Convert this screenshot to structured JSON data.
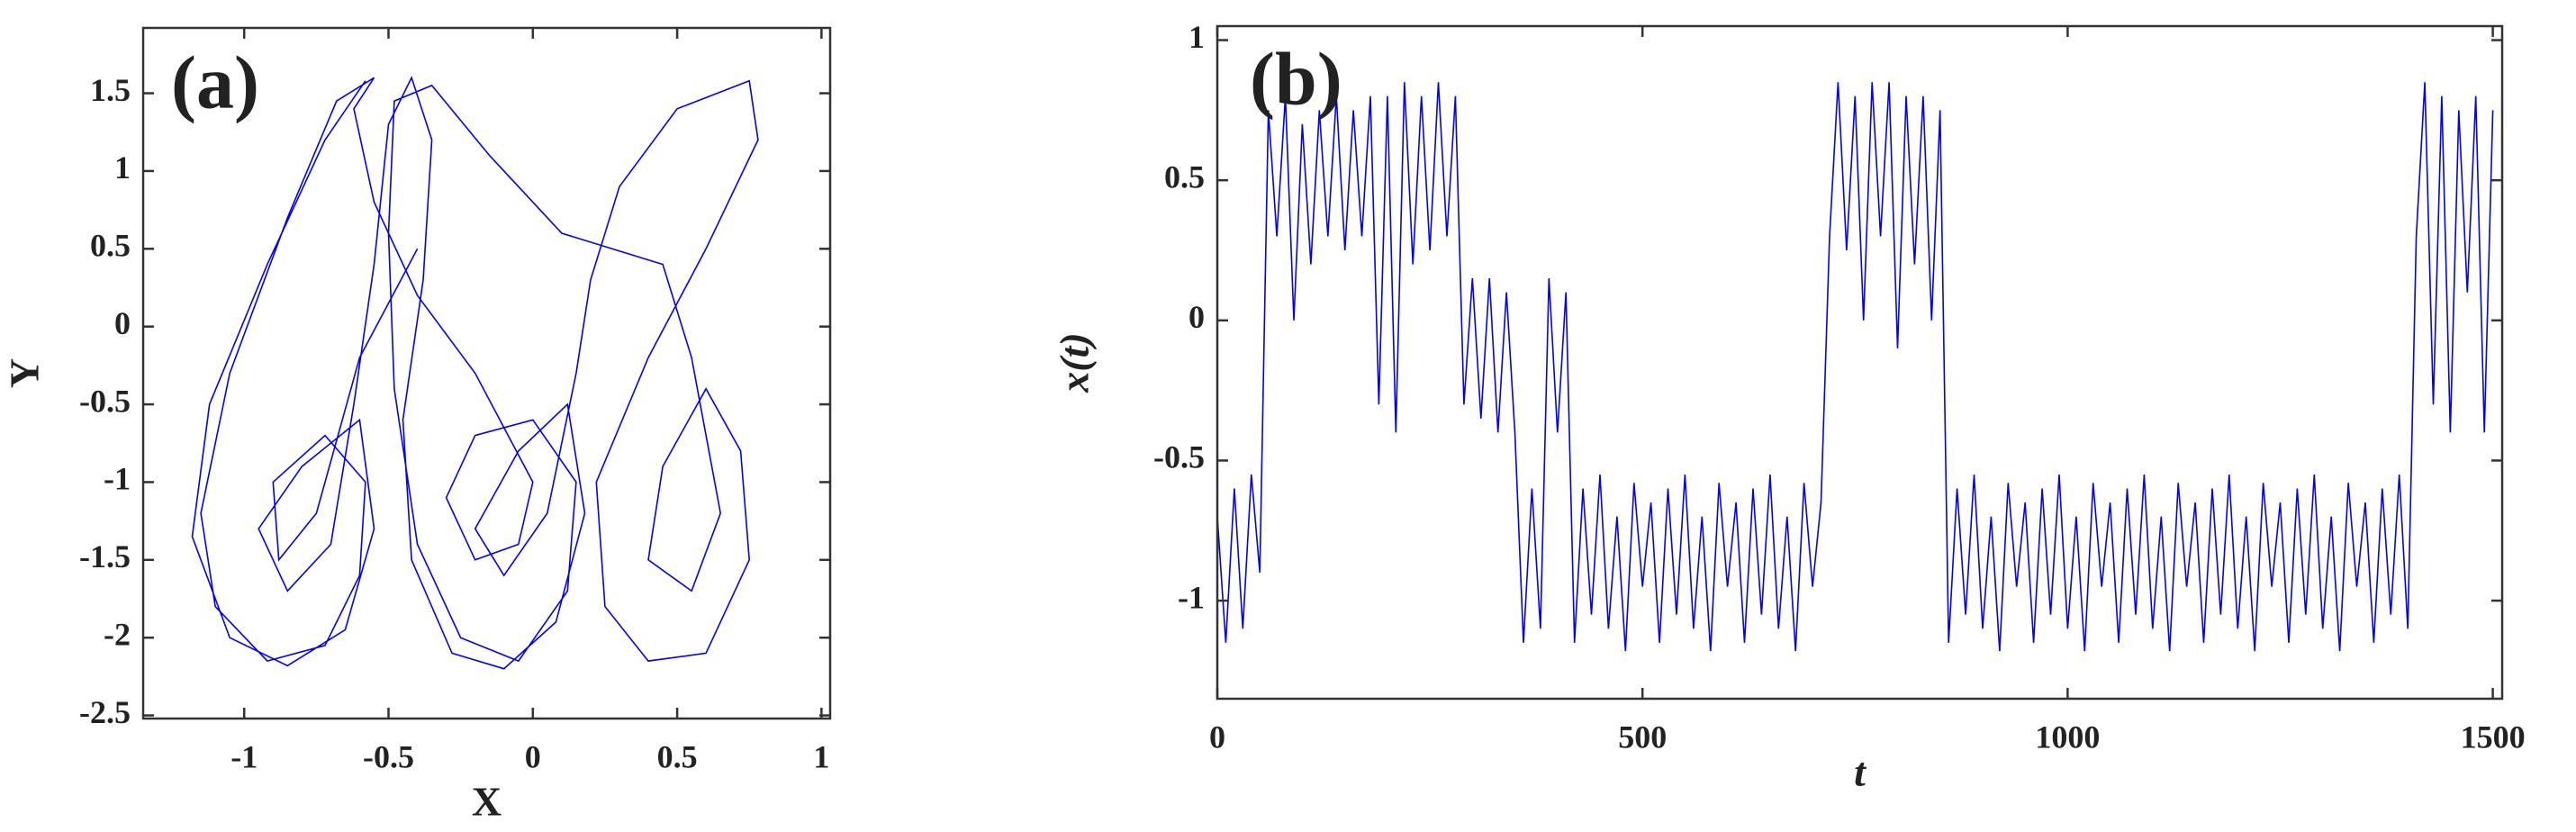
{
  "chart_data": [
    {
      "type": "line",
      "panel_label": "(a)",
      "xlabel": "X",
      "ylabel": "Y",
      "color": "#0000ff",
      "xlim": [
        -1.35,
        1.03
      ],
      "ylim": [
        -2.52,
        1.92
      ],
      "xticks": [
        -1,
        -0.5,
        0,
        0.5,
        1
      ],
      "yticks": [
        -2.5,
        -2,
        -1.5,
        -1,
        -0.5,
        0,
        0.5,
        1,
        1.5
      ],
      "x": [
        -0.58,
        -0.72,
        -0.92,
        -1.12,
        -1.18,
        -1.05,
        -0.85,
        -0.65,
        -0.55,
        -0.6,
        -0.8,
        -0.95,
        -0.85,
        -0.7,
        -0.62,
        -0.55,
        -0.5,
        -0.42,
        -0.35,
        -0.38,
        -0.45,
        -0.42,
        -0.28,
        -0.1,
        0.08,
        0.18,
        0.12,
        -0.05,
        -0.2,
        -0.1,
        0.05,
        0.15,
        0.2,
        0.3,
        0.5,
        0.75,
        0.78,
        0.6,
        0.4,
        0.22,
        0.25,
        0.4,
        0.6,
        0.75,
        0.72,
        0.6,
        0.45,
        0.4,
        0.55,
        0.65,
        0.55,
        0.45,
        0.1,
        -0.15,
        -0.35,
        -0.48,
        -0.5,
        -0.48,
        -0.4,
        -0.25,
        -0.05,
        0.12,
        0.15,
        0,
        -0.2,
        -0.3,
        -0.2,
        -0.05,
        0,
        -0.2,
        -0.4,
        -0.55,
        -0.62,
        -0.55,
        -0.68,
        -0.85,
        -1.05,
        -1.15,
        -1.1,
        -0.92,
        -0.72,
        -0.6,
        -0.58,
        -0.72,
        -0.9,
        -0.88,
        -0.75,
        -0.6,
        -0.4
      ],
      "values": [
        1.58,
        1.2,
        0.4,
        -0.5,
        -1.35,
        -2,
        -2.18,
        -1.95,
        -1.3,
        -0.6,
        -0.9,
        -1.3,
        -1.7,
        -1.4,
        -0.5,
        0.4,
        1.3,
        1.6,
        1.2,
        0.3,
        -0.6,
        -1.5,
        -2.1,
        -2.2,
        -1.9,
        -1.2,
        -0.5,
        -0.8,
        -1.3,
        -1.6,
        -1.2,
        -0.3,
        0.3,
        0.9,
        1.4,
        1.58,
        1.2,
        0.5,
        -0.2,
        -1,
        -1.8,
        -2.15,
        -2.1,
        -1.5,
        -0.8,
        -0.4,
        -0.9,
        -1.5,
        -1.7,
        -1.2,
        -0.2,
        0.4,
        0.6,
        1.1,
        1.55,
        1.45,
        0.6,
        -0.4,
        -1.4,
        -2,
        -2.15,
        -1.7,
        -1,
        -0.6,
        -0.7,
        -1.1,
        -1.5,
        -1.4,
        -1,
        -0.3,
        0.2,
        0.8,
        1.4,
        1.6,
        1.45,
        0.7,
        -0.3,
        -1.2,
        -1.8,
        -2.15,
        -2.05,
        -1.6,
        -1,
        -0.7,
        -1,
        -1.5,
        -1.2,
        -0.2,
        0.5
      ]
    },
    {
      "type": "line",
      "panel_label": "(b)",
      "xlabel": "t",
      "ylabel": "x(t)",
      "color": "#0000ff",
      "xlim": [
        0,
        1511
      ],
      "ylim": [
        -1.35,
        1.05
      ],
      "xticks": [
        0,
        500,
        1000,
        1500
      ],
      "yticks": [
        -1,
        -0.5,
        0,
        0.5,
        1
      ],
      "x": [
        0,
        10,
        20,
        30,
        40,
        50,
        60,
        70,
        80,
        90,
        100,
        110,
        120,
        130,
        140,
        150,
        160,
        170,
        180,
        190,
        200,
        210,
        220,
        230,
        240,
        250,
        260,
        270,
        280,
        290,
        300,
        310,
        320,
        330,
        340,
        350,
        360,
        370,
        380,
        390,
        400,
        410,
        420,
        430,
        440,
        450,
        460,
        470,
        480,
        490,
        500,
        510,
        520,
        530,
        540,
        550,
        560,
        570,
        580,
        590,
        600,
        610,
        620,
        630,
        640,
        650,
        660,
        670,
        680,
        690,
        700,
        710,
        720,
        730,
        740,
        750,
        760,
        770,
        780,
        790,
        800,
        810,
        820,
        830,
        840,
        850,
        860,
        870,
        880,
        890,
        900,
        910,
        920,
        930,
        940,
        950,
        960,
        970,
        980,
        990,
        1000,
        1010,
        1020,
        1030,
        1040,
        1050,
        1060,
        1070,
        1080,
        1090,
        1100,
        1110,
        1120,
        1130,
        1140,
        1150,
        1160,
        1170,
        1180,
        1190,
        1200,
        1210,
        1220,
        1230,
        1240,
        1250,
        1260,
        1270,
        1280,
        1290,
        1300,
        1310,
        1320,
        1330,
        1340,
        1350,
        1360,
        1370,
        1380,
        1390,
        1400,
        1410,
        1420,
        1430,
        1440,
        1450,
        1460,
        1470,
        1480,
        1490,
        1500
      ],
      "values": [
        -0.7,
        -1.15,
        -0.6,
        -1.1,
        -0.55,
        -0.9,
        0.75,
        0.3,
        0.8,
        0,
        0.7,
        0.2,
        0.75,
        0.3,
        0.8,
        0.25,
        0.75,
        0.3,
        0.8,
        -0.3,
        0.8,
        -0.4,
        0.85,
        0.2,
        0.8,
        0.25,
        0.85,
        0.3,
        0.8,
        -0.3,
        0.15,
        -0.35,
        0.15,
        -0.4,
        0.1,
        -0.4,
        -1.15,
        -0.6,
        -1.1,
        0.15,
        -0.4,
        0.1,
        -1.15,
        -0.6,
        -1.05,
        -0.55,
        -1.1,
        -0.7,
        -1.18,
        -0.58,
        -0.95,
        -0.65,
        -1.15,
        -0.6,
        -1.05,
        -0.55,
        -1.1,
        -0.7,
        -1.18,
        -0.58,
        -0.95,
        -0.65,
        -1.15,
        -0.6,
        -1.05,
        -0.55,
        -1.1,
        -0.7,
        -1.18,
        -0.58,
        -0.95,
        -0.65,
        0.3,
        0.85,
        0.25,
        0.8,
        0,
        0.85,
        0.3,
        0.85,
        -0.1,
        0.8,
        0.2,
        0.8,
        0,
        0.75,
        -1.15,
        -0.6,
        -1.05,
        -0.55,
        -1.1,
        -0.7,
        -1.18,
        -0.58,
        -0.95,
        -0.65,
        -1.15,
        -0.6,
        -1.05,
        -0.55,
        -1.1,
        -0.7,
        -1.18,
        -0.58,
        -0.95,
        -0.65,
        -1.15,
        -0.6,
        -1.05,
        -0.55,
        -1.1,
        -0.7,
        -1.18,
        -0.58,
        -0.95,
        -0.65,
        -1.15,
        -0.6,
        -1.05,
        -0.55,
        -1.1,
        -0.7,
        -1.18,
        -0.58,
        -0.95,
        -0.65,
        -1.15,
        -0.6,
        -1.05,
        -0.55,
        -1.1,
        -0.7,
        -1.18,
        -0.58,
        -0.95,
        -0.65,
        -1.15,
        -0.6,
        -1.05,
        -0.55,
        -1.1,
        0.3,
        0.85,
        -0.3,
        0.8,
        -0.4,
        0.75,
        0.1,
        0.8,
        -0.4,
        0.75
      ]
    }
  ]
}
